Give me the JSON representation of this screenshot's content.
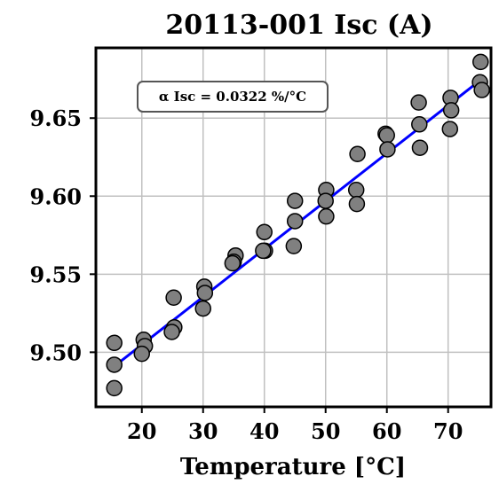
{
  "chart_data": {
    "type": "scatter",
    "title": "20113-001 Isc (A)",
    "xlabel": "Temperature [°C]",
    "ylabel": "",
    "xlim": [
      12.5,
      77
    ],
    "ylim": [
      9.465,
      9.695
    ],
    "xticks": [
      20,
      30,
      40,
      50,
      60,
      70
    ],
    "yticks": [
      9.5,
      9.55,
      9.6,
      9.65
    ],
    "xtick_labels": [
      "20",
      "30",
      "40",
      "50",
      "60",
      "70"
    ],
    "ytick_labels": [
      "9.50",
      "9.55",
      "9.60",
      "9.65"
    ],
    "grid": true,
    "annotation": "α Isc = 0.0322 %/°C",
    "points": [
      {
        "x": 15.5,
        "y": 9.506
      },
      {
        "x": 15.5,
        "y": 9.492
      },
      {
        "x": 15.5,
        "y": 9.477
      },
      {
        "x": 20.3,
        "y": 9.508
      },
      {
        "x": 20.5,
        "y": 9.504
      },
      {
        "x": 20.0,
        "y": 9.499
      },
      {
        "x": 25.2,
        "y": 9.535
      },
      {
        "x": 25.3,
        "y": 9.516
      },
      {
        "x": 24.9,
        "y": 9.513
      },
      {
        "x": 30.2,
        "y": 9.542
      },
      {
        "x": 30.3,
        "y": 9.538
      },
      {
        "x": 30.0,
        "y": 9.528
      },
      {
        "x": 35.3,
        "y": 9.562
      },
      {
        "x": 35.0,
        "y": 9.558
      },
      {
        "x": 34.8,
        "y": 9.557
      },
      {
        "x": 40.0,
        "y": 9.577
      },
      {
        "x": 40.1,
        "y": 9.565
      },
      {
        "x": 39.8,
        "y": 9.565
      },
      {
        "x": 45.0,
        "y": 9.597
      },
      {
        "x": 45.0,
        "y": 9.584
      },
      {
        "x": 44.8,
        "y": 9.568
      },
      {
        "x": 50.1,
        "y": 9.604
      },
      {
        "x": 50.0,
        "y": 9.597
      },
      {
        "x": 50.1,
        "y": 9.587
      },
      {
        "x": 55.2,
        "y": 9.627
      },
      {
        "x": 55.0,
        "y": 9.604
      },
      {
        "x": 55.1,
        "y": 9.595
      },
      {
        "x": 59.8,
        "y": 9.64
      },
      {
        "x": 60.0,
        "y": 9.639
      },
      {
        "x": 60.1,
        "y": 9.63
      },
      {
        "x": 65.2,
        "y": 9.66
      },
      {
        "x": 65.3,
        "y": 9.646
      },
      {
        "x": 65.4,
        "y": 9.631
      },
      {
        "x": 70.4,
        "y": 9.663
      },
      {
        "x": 70.5,
        "y": 9.655
      },
      {
        "x": 70.3,
        "y": 9.643
      },
      {
        "x": 75.3,
        "y": 9.686
      },
      {
        "x": 75.2,
        "y": 9.673
      },
      {
        "x": 75.5,
        "y": 9.668
      }
    ],
    "fit": {
      "x": [
        15.5,
        75.5
      ],
      "y": [
        9.491,
        9.675
      ],
      "color": "#0000ff"
    },
    "point_color": "#808080"
  }
}
